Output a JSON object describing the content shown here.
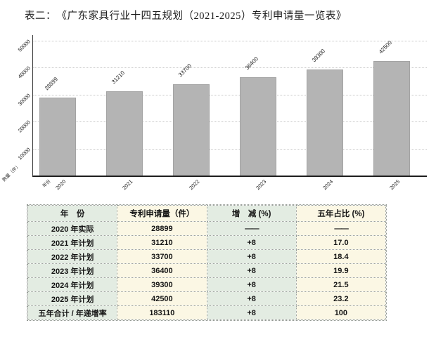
{
  "page": {
    "title": "表二：　《广东家具行业十四五规划（2021-2025）专利申请量一览表》"
  },
  "chart_data": {
    "type": "bar",
    "title": "",
    "categories": [
      "2020",
      "2021",
      "2022",
      "2023",
      "2024",
      "2025"
    ],
    "values": [
      28899,
      31210,
      33700,
      36400,
      39300,
      42500
    ],
    "bar_value_labels": [
      "28899",
      "31210",
      "33700",
      "36400",
      "39300",
      "42500"
    ],
    "xlabel": "年份",
    "ylabel": "数量（件）",
    "ylim": [
      0,
      50000
    ],
    "yticks": [
      10000,
      20000,
      30000,
      40000,
      50000
    ],
    "ytick_labels": [
      "10000",
      "20000",
      "30000",
      "40000",
      "50000"
    ],
    "grid": "horizontal-dotted",
    "legend": "none",
    "bar_color": "#b4b4b4"
  },
  "table": {
    "headers": [
      "年　份",
      "专利申请量（件）",
      "增　减 (%)",
      "五年占比 (%)"
    ],
    "rows": [
      [
        "2020 年实际",
        "28899",
        "——",
        "——"
      ],
      [
        "2021 年计划",
        "31210",
        "+8",
        "17.0"
      ],
      [
        "2022 年计划",
        "33700",
        "+8",
        "18.4"
      ],
      [
        "2023 年计划",
        "36400",
        "+8",
        "19.9"
      ],
      [
        "2024 年计划",
        "39300",
        "+8",
        "21.5"
      ],
      [
        "2025 年计划",
        "42500",
        "+8",
        "23.2"
      ],
      [
        "五年合计 / 年递增率",
        "183110",
        "+8",
        "100"
      ]
    ],
    "colors": {
      "column_green": "#e3ece2",
      "column_cream": "#fbf7e4"
    }
  }
}
